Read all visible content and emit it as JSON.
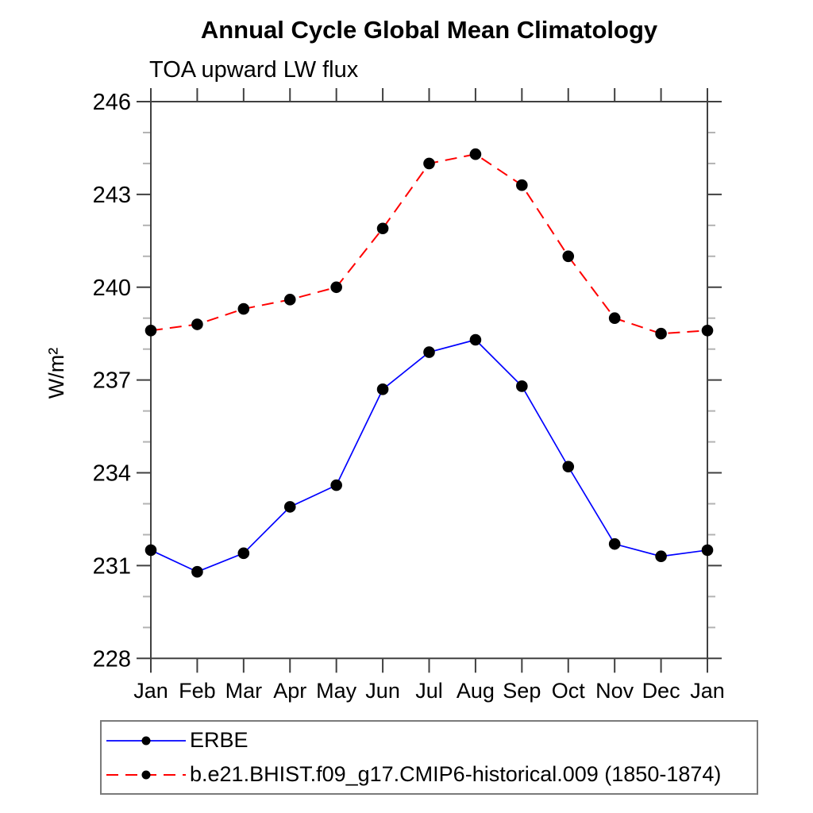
{
  "title": "Annual Cycle Global Mean Climatology",
  "subtitle": "TOA upward LW flux",
  "chart_data": {
    "type": "line",
    "categories": [
      "Jan",
      "Feb",
      "Mar",
      "Apr",
      "May",
      "Jun",
      "Jul",
      "Aug",
      "Sep",
      "Oct",
      "Nov",
      "Dec",
      "Jan"
    ],
    "xlabel": "",
    "ylabel": "W/m²",
    "ylim": [
      228,
      246
    ],
    "ytick_major": [
      228,
      231,
      234,
      237,
      240,
      243,
      246
    ],
    "ytick_minor_step": 1,
    "grid": false,
    "legend_position": "bottom-left-box",
    "series": [
      {
        "name": "ERBE",
        "color": "#0000ff",
        "line_style": "solid",
        "marker": "filled-circle",
        "marker_color": "#000000",
        "values": [
          231.5,
          230.8,
          231.4,
          232.9,
          233.6,
          236.7,
          237.9,
          238.3,
          236.8,
          234.2,
          231.7,
          231.3,
          231.5
        ]
      },
      {
        "name": "b.e21.BHIST.f09_g17.CMIP6-historical.009 (1850-1874)",
        "color": "#ff0000",
        "line_style": "dashed",
        "marker": "filled-circle",
        "marker_color": "#000000",
        "values": [
          238.6,
          238.8,
          239.3,
          239.6,
          240.0,
          241.9,
          244.0,
          244.3,
          243.3,
          241.0,
          239.0,
          238.5,
          238.6
        ]
      }
    ]
  },
  "colors": {
    "axis": "#404040",
    "minor_tick": "#b3b3b3",
    "legend_border": "#7a7a7a",
    "background": "#ffffff"
  }
}
